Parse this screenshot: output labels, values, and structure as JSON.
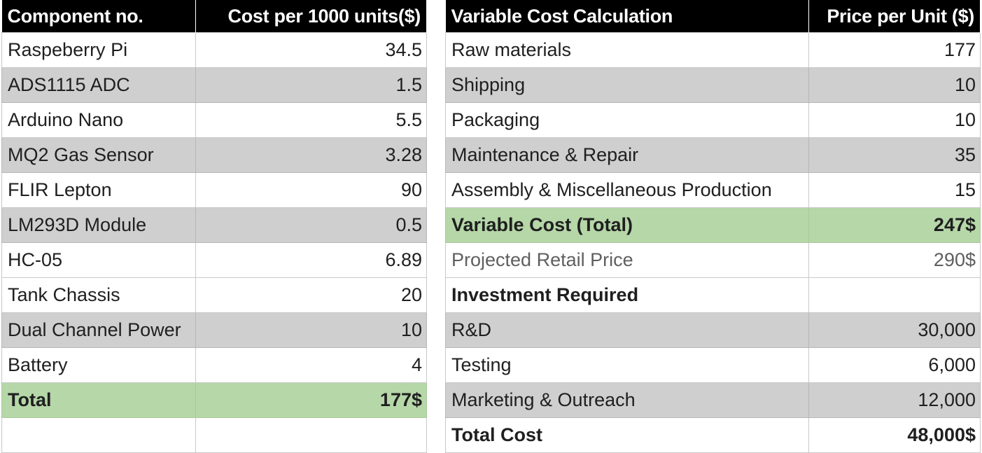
{
  "components_table": {
    "headers": [
      "Component no.",
      "Cost per 1000 units($)"
    ],
    "rows": [
      {
        "name": "Raspeberry Pi",
        "cost": "34.5"
      },
      {
        "name": "ADS1115 ADC",
        "cost": "1.5"
      },
      {
        "name": "Arduino Nano",
        "cost": "5.5"
      },
      {
        "name": "MQ2 Gas Sensor",
        "cost": "3.28"
      },
      {
        "name": "FLIR Lepton",
        "cost": "90"
      },
      {
        "name": "LM293D Module",
        "cost": "0.5"
      },
      {
        "name": "HC-05",
        "cost": "6.89"
      },
      {
        "name": "Tank Chassis",
        "cost": "20"
      },
      {
        "name": "Dual Channel Power",
        "cost": "10"
      },
      {
        "name": "Battery",
        "cost": "4"
      }
    ],
    "total": {
      "label": "Total",
      "value": "177$"
    }
  },
  "cost_table": {
    "headers": [
      "Variable Cost Calculation",
      "Price per Unit ($)"
    ],
    "rows": [
      {
        "label": "Raw materials",
        "value": "177"
      },
      {
        "label": "Shipping",
        "value": "10"
      },
      {
        "label": "Packaging",
        "value": "10"
      },
      {
        "label": "Maintenance & Repair",
        "value": "35"
      },
      {
        "label": "Assembly & Miscellaneous Production",
        "value": "15"
      },
      {
        "label": "Variable Cost (Total)",
        "value": "247$"
      },
      {
        "label": "Projected Retail Price",
        "value": "290$"
      },
      {
        "label": "Investment Required",
        "value": ""
      },
      {
        "label": "R&D",
        "value": "30,000"
      },
      {
        "label": "Testing",
        "value": "6,000"
      },
      {
        "label": "Marketing & Outreach",
        "value": "12,000"
      },
      {
        "label": "Total Cost",
        "value": "48,000$"
      }
    ]
  },
  "colors": {
    "header_bg": "#000000",
    "grey_row": "#cfcfcf",
    "total_green": "#b6d7a8"
  }
}
